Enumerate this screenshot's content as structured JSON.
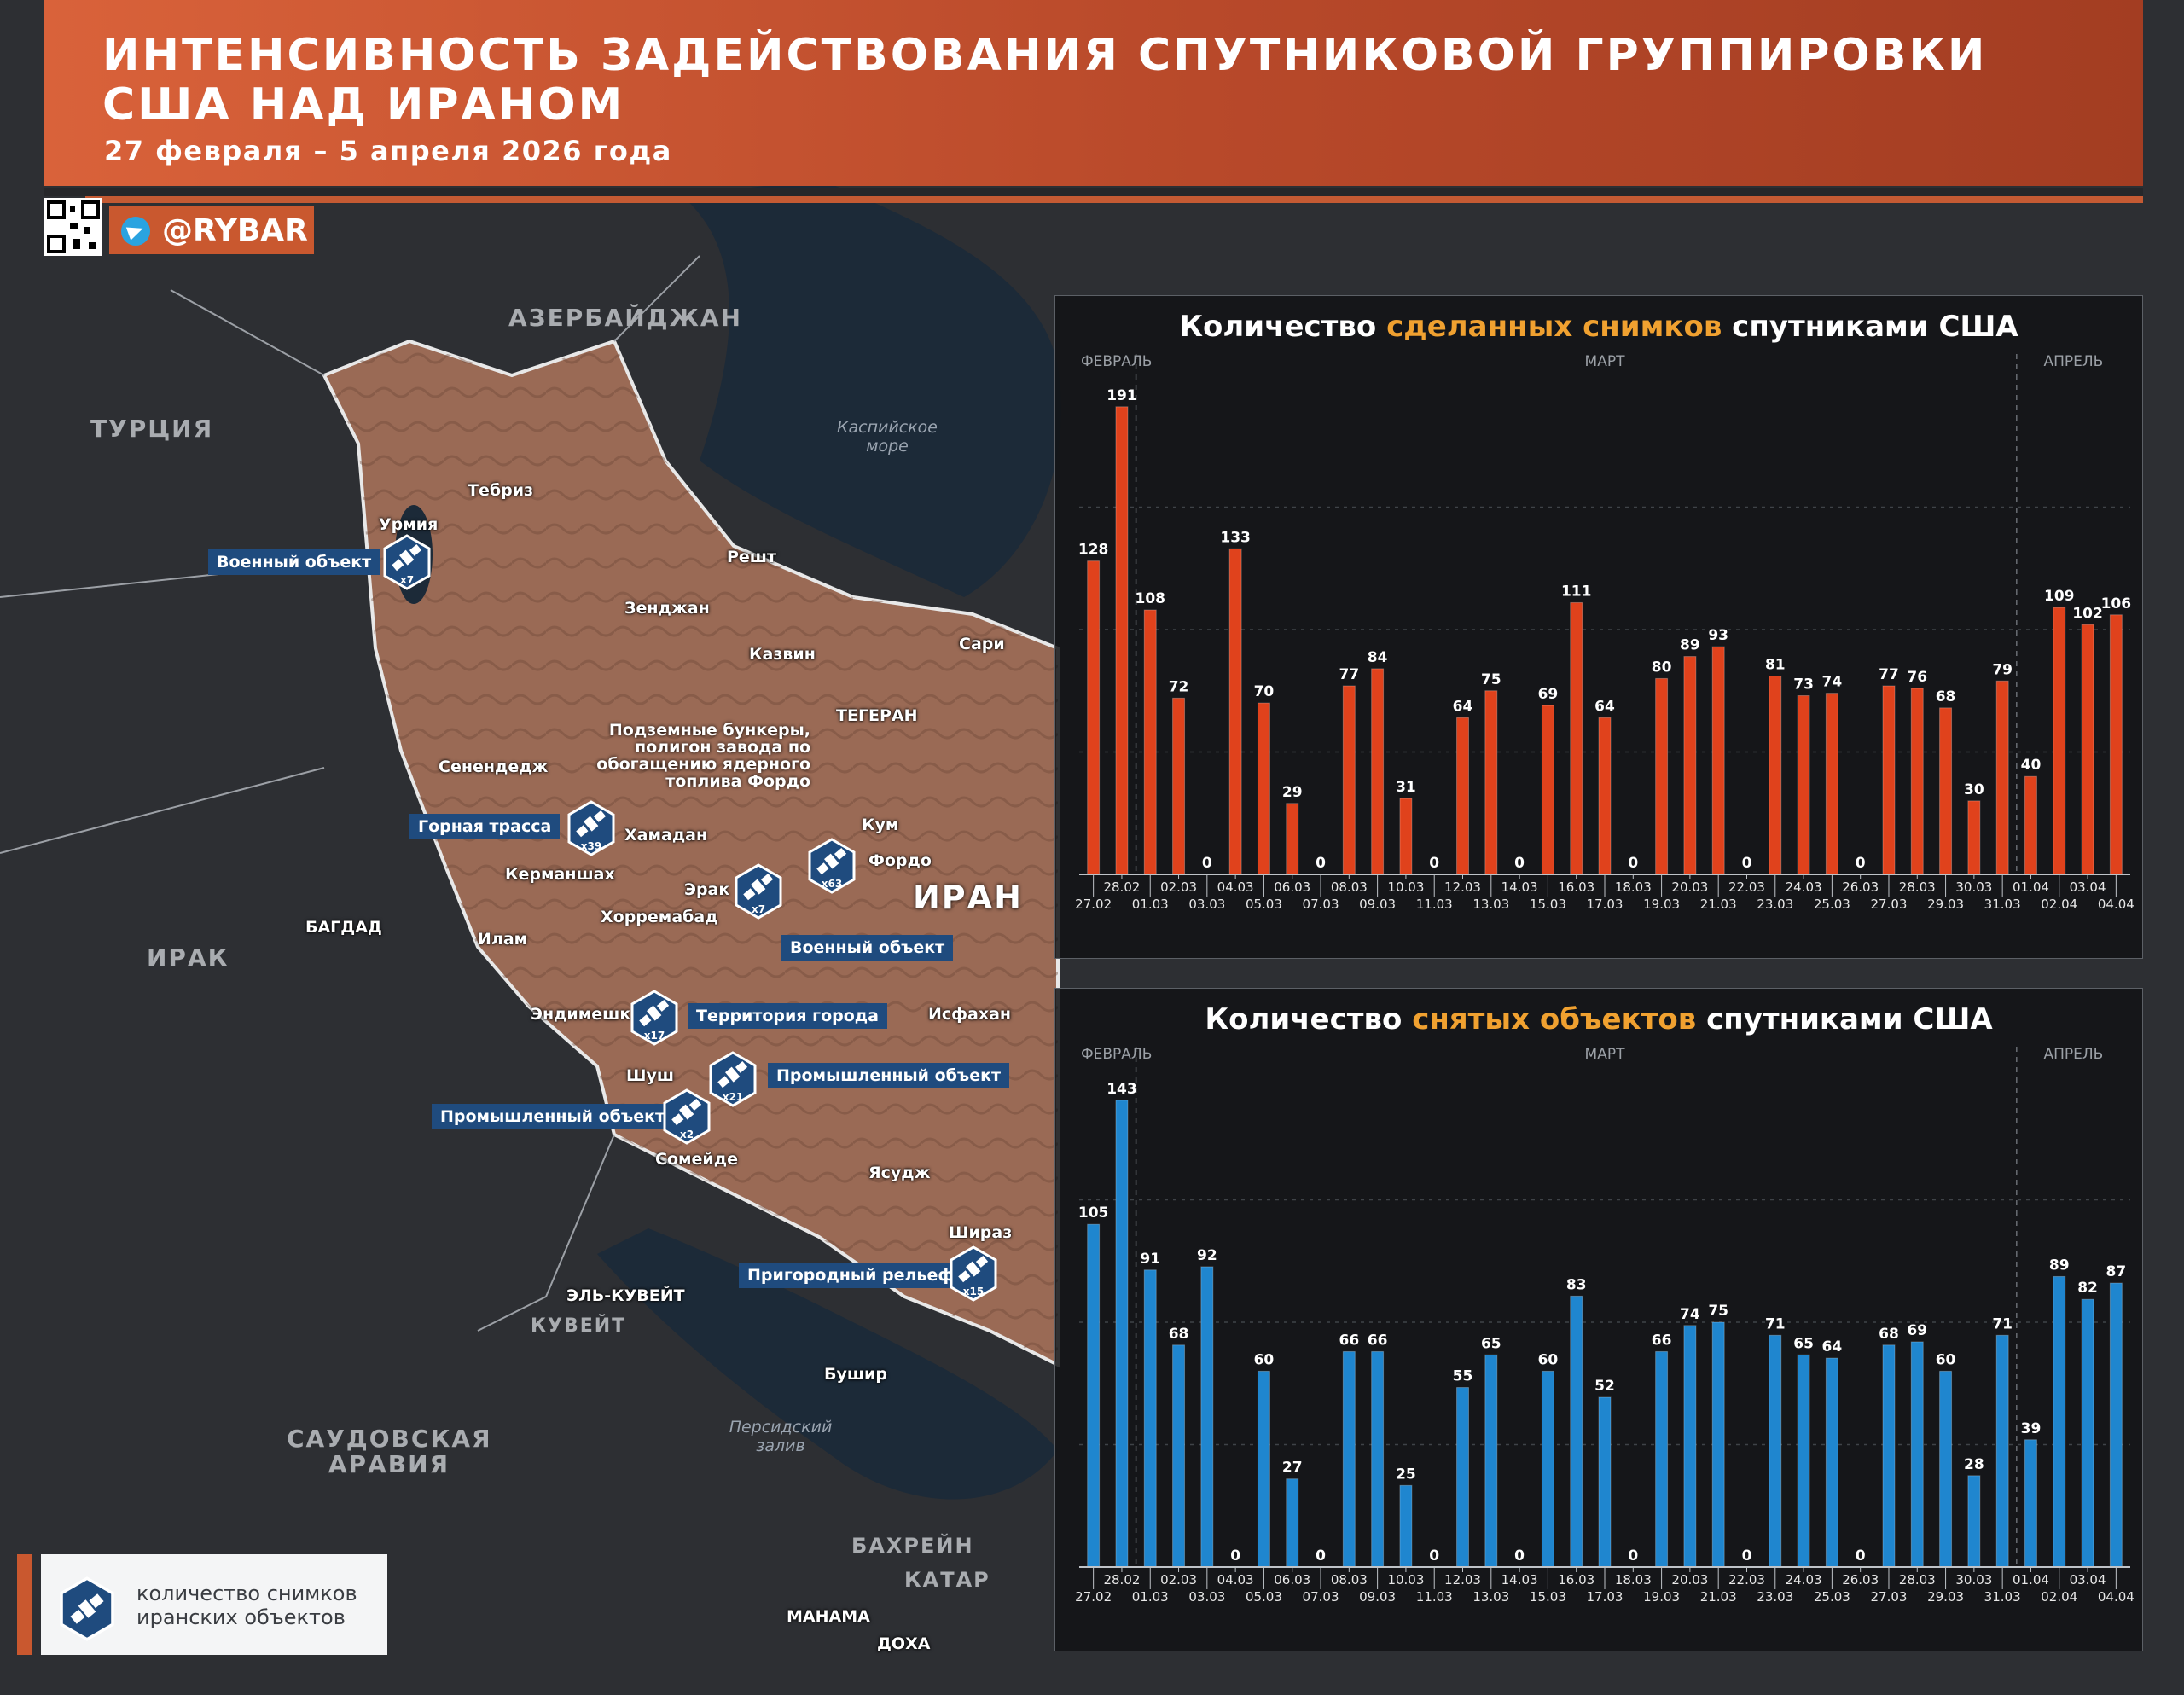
{
  "header": {
    "title": "ИНТЕНСИВНОСТЬ ЗАДЕЙСТВОВАНИЯ СПУТНИКОВОЙ ГРУППИРОВКИ США НАД ИРАНОМ",
    "subtitle": "27 февраля – 5 апреля 2026 года",
    "brand": "@RYBAR"
  },
  "colors": {
    "accent": "#c9582f",
    "bars_images": "#e0421c",
    "bars_objects": "#1f86cf",
    "callout": "#1f4b7e"
  },
  "map": {
    "countries": [
      "АЗЕРБАЙДЖАН",
      "ТУРЦИЯ",
      "ИРАК",
      "САУДОВСКАЯ АРАВИЯ",
      "КУВЕЙТ",
      "БАХРЕЙН",
      "КАТАР",
      "ИРАН"
    ],
    "seas": [
      "Каспийское море",
      "Персидский залив"
    ],
    "cities": [
      "Тебриз",
      "Урмия",
      "Решт",
      "Зенджан",
      "Казвин",
      "Сари",
      "ТЕГЕРАН",
      "Сенендедж",
      "Хамадан",
      "Кум",
      "Фордо",
      "Керманшах",
      "Эрак",
      "Хорремабад",
      "Илам",
      "БАГДАД",
      "Исфахан",
      "Эндимешк",
      "Шуш",
      "Сомейде",
      "Ясудж",
      "Шираз",
      "ЭЛЬ-КУВЕЙТ",
      "Бушир",
      "МАНАМА",
      "ДОХА"
    ],
    "callouts": [
      {
        "label": "Военный объект",
        "count": "x7",
        "icon": "satellite-icon"
      },
      {
        "label": "Подземные бункеры, полигон завода по обогащению ядерного топлива Фордо",
        "count": "x63",
        "icon": "satellite-icon"
      },
      {
        "label": "Горная трасса",
        "count": "x39",
        "icon": "satellite-icon"
      },
      {
        "label": "Военный объект",
        "count": "x7",
        "icon": "satellite-icon"
      },
      {
        "label": "Территория города",
        "count": "x17",
        "icon": "satellite-icon"
      },
      {
        "label": "Промышленный объект",
        "count": "x21",
        "icon": "satellite-icon"
      },
      {
        "label": "Промышленный объект",
        "count": "x2",
        "icon": "satellite-icon"
      },
      {
        "label": "Пригородный рельеф",
        "count": "x15",
        "icon": "satellite-icon"
      }
    ]
  },
  "legend": {
    "icon": "satellite-icon",
    "text_line1": "количество снимков",
    "text_line2": "иранских объектов"
  },
  "chart_data": [
    {
      "type": "bar",
      "title_prefix": "Количество ",
      "title_highlight": "сделанных снимков",
      "title_suffix": " спутниками США",
      "months": [
        "ФЕВРАЛЬ",
        "МАРТ",
        "АПРЕЛЬ"
      ],
      "categories": [
        "27.02",
        "28.02",
        "01.03",
        "02.03",
        "03.03",
        "04.03",
        "05.03",
        "06.03",
        "07.03",
        "08.03",
        "09.03",
        "10.03",
        "11.03",
        "12.03",
        "13.03",
        "14.03",
        "15.03",
        "16.03",
        "17.03",
        "18.03",
        "19.03",
        "20.03",
        "21.03",
        "22.03",
        "23.03",
        "24.03",
        "25.03",
        "26.03",
        "27.03",
        "28.03",
        "29.03",
        "30.03",
        "31.03",
        "01.04",
        "02.04",
        "03.04",
        "04.04"
      ],
      "values": [
        128,
        191,
        108,
        72,
        0,
        133,
        70,
        29,
        0,
        77,
        84,
        31,
        0,
        64,
        75,
        0,
        69,
        111,
        64,
        0,
        80,
        89,
        93,
        0,
        81,
        73,
        74,
        0,
        77,
        76,
        68,
        30,
        79,
        40,
        109,
        102,
        106
      ],
      "ylim": [
        0,
        200
      ],
      "grid": true
    },
    {
      "type": "bar",
      "title_prefix": "Количество ",
      "title_highlight": "снятых объектов",
      "title_suffix": " спутниками США",
      "months": [
        "ФЕВРАЛЬ",
        "МАРТ",
        "АПРЕЛЬ"
      ],
      "categories": [
        "27.02",
        "28.02",
        "01.03",
        "02.03",
        "03.03",
        "04.03",
        "05.03",
        "06.03",
        "07.03",
        "08.03",
        "09.03",
        "10.03",
        "11.03",
        "12.03",
        "13.03",
        "14.03",
        "15.03",
        "16.03",
        "17.03",
        "18.03",
        "19.03",
        "20.03",
        "21.03",
        "22.03",
        "23.03",
        "24.03",
        "25.03",
        "26.03",
        "27.03",
        "28.03",
        "29.03",
        "30.03",
        "31.03",
        "01.04",
        "02.04",
        "03.04",
        "04.04"
      ],
      "values": [
        105,
        143,
        91,
        68,
        92,
        0,
        60,
        27,
        0,
        66,
        66,
        25,
        0,
        55,
        65,
        0,
        60,
        83,
        52,
        0,
        66,
        74,
        75,
        0,
        71,
        65,
        64,
        0,
        68,
        69,
        60,
        28,
        71,
        39,
        89,
        82,
        87
      ],
      "ylim": [
        0,
        150
      ],
      "grid": true
    }
  ]
}
